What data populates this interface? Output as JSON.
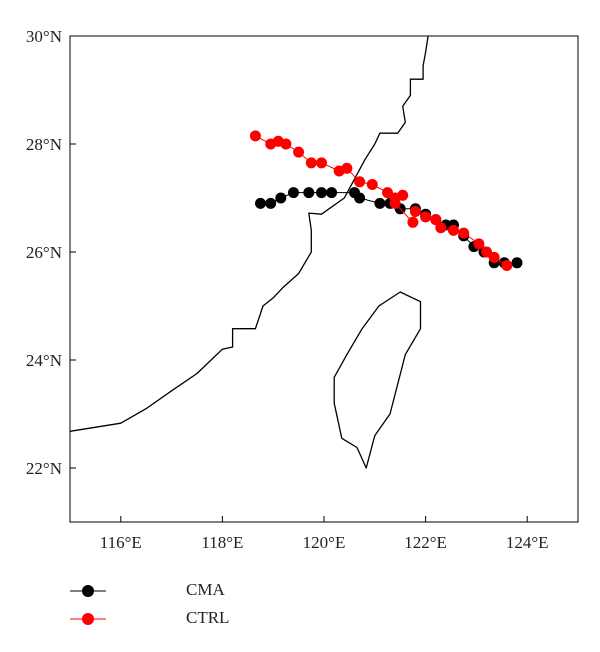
{
  "chart_data": {
    "type": "scatter",
    "x_range": [
      115,
      125
    ],
    "y_range": [
      21,
      30
    ],
    "x_ticks": [
      116,
      118,
      120,
      122,
      124
    ],
    "x_tick_labels": [
      "116°E",
      "118°E",
      "120°E",
      "122°E",
      "124°E"
    ],
    "y_ticks": [
      22,
      24,
      26,
      28,
      30
    ],
    "y_tick_labels": [
      "22°N",
      "24°N",
      "26°N",
      "28°N",
      "30°N"
    ],
    "grid": false,
    "legend_placement": "below",
    "coastline": [
      [
        115.0,
        22.68
      ],
      [
        116.0,
        22.83
      ],
      [
        116.5,
        23.1
      ],
      [
        117.0,
        23.43
      ],
      [
        117.5,
        23.75
      ],
      [
        118.0,
        24.2
      ],
      [
        118.2,
        24.24
      ],
      [
        118.2,
        24.58
      ],
      [
        118.65,
        24.58
      ],
      [
        118.8,
        25.0
      ],
      [
        119.0,
        25.15
      ],
      [
        119.2,
        25.35
      ],
      [
        119.5,
        25.6
      ],
      [
        119.75,
        26.0
      ],
      [
        119.75,
        26.4
      ],
      [
        119.7,
        26.72
      ],
      [
        119.95,
        26.7
      ],
      [
        120.4,
        27.0
      ],
      [
        120.6,
        27.35
      ],
      [
        120.8,
        27.7
      ],
      [
        121.0,
        28.0
      ],
      [
        121.1,
        28.2
      ],
      [
        121.45,
        28.2
      ],
      [
        121.6,
        28.4
      ],
      [
        121.55,
        28.7
      ],
      [
        121.7,
        28.9
      ],
      [
        121.7,
        29.2
      ],
      [
        121.95,
        29.2
      ],
      [
        121.95,
        29.45
      ],
      [
        122.0,
        29.7
      ],
      [
        122.05,
        30.0
      ]
    ],
    "islands": [
      [
        [
          121.08,
          25.0
        ],
        [
          121.5,
          25.26
        ],
        [
          121.9,
          25.08
        ],
        [
          121.9,
          24.58
        ],
        [
          121.6,
          24.1
        ],
        [
          121.3,
          23.0
        ],
        [
          121.0,
          22.6
        ],
        [
          120.83,
          22.0
        ],
        [
          120.65,
          22.38
        ],
        [
          120.35,
          22.55
        ],
        [
          120.2,
          23.2
        ],
        [
          120.2,
          23.68
        ],
        [
          120.45,
          24.1
        ],
        [
          120.75,
          24.58
        ]
      ]
    ],
    "series": [
      {
        "name": "CMA",
        "color": "#000000",
        "points": [
          [
            118.75,
            26.9
          ],
          [
            118.95,
            26.9
          ],
          [
            119.15,
            27.0
          ],
          [
            119.4,
            27.1
          ],
          [
            119.7,
            27.1
          ],
          [
            119.95,
            27.1
          ],
          [
            120.15,
            27.1
          ],
          [
            120.6,
            27.1
          ],
          [
            120.7,
            27.0
          ],
          [
            121.1,
            26.9
          ],
          [
            121.3,
            26.9
          ],
          [
            121.5,
            26.8
          ],
          [
            121.8,
            26.8
          ],
          [
            122.0,
            26.7
          ],
          [
            122.2,
            26.6
          ],
          [
            122.4,
            26.5
          ],
          [
            122.55,
            26.5
          ],
          [
            122.75,
            26.3
          ],
          [
            122.95,
            26.1
          ],
          [
            123.15,
            26.0
          ],
          [
            123.35,
            25.8
          ],
          [
            123.55,
            25.8
          ],
          [
            123.8,
            25.8
          ]
        ]
      },
      {
        "name": "CTRL",
        "color": "#ff0000",
        "points": [
          [
            118.65,
            28.15
          ],
          [
            118.95,
            28.0
          ],
          [
            119.1,
            28.05
          ],
          [
            119.25,
            28.0
          ],
          [
            119.5,
            27.85
          ],
          [
            119.75,
            27.65
          ],
          [
            119.95,
            27.65
          ],
          [
            120.3,
            27.5
          ],
          [
            120.45,
            27.55
          ],
          [
            120.7,
            27.3
          ],
          [
            120.95,
            27.25
          ],
          [
            121.25,
            27.1
          ],
          [
            121.4,
            27.0
          ],
          [
            121.55,
            27.05
          ],
          [
            121.4,
            26.9
          ],
          [
            121.75,
            26.55
          ],
          [
            121.8,
            26.75
          ],
          [
            122.0,
            26.65
          ],
          [
            122.2,
            26.6
          ],
          [
            122.3,
            26.45
          ],
          [
            122.55,
            26.4
          ],
          [
            122.75,
            26.35
          ],
          [
            123.05,
            26.15
          ],
          [
            123.2,
            26.0
          ],
          [
            123.35,
            25.9
          ],
          [
            123.6,
            25.75
          ]
        ]
      }
    ]
  }
}
